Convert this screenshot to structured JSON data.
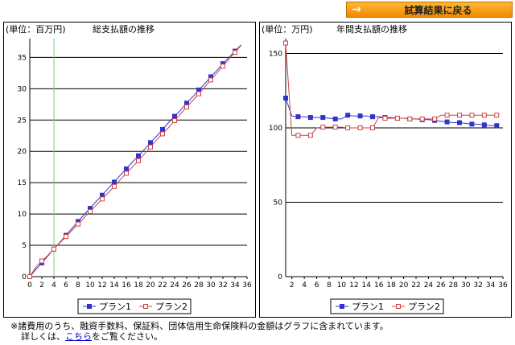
{
  "back_button": {
    "label": "試算結果に戻る",
    "icon": "arrow-right-icon"
  },
  "chart_data": [
    {
      "type": "line",
      "unit_label": "(単位：百万円)",
      "title": "総支払額の推移",
      "xlim": [
        0,
        36
      ],
      "ylim": [
        0,
        38
      ],
      "x_ticks": [
        0,
        2,
        4,
        6,
        8,
        10,
        12,
        14,
        16,
        18,
        20,
        22,
        24,
        26,
        28,
        30,
        32,
        34,
        36
      ],
      "y_ticks": [
        0,
        5,
        10,
        15,
        20,
        25,
        30,
        35
      ],
      "gridlines": [
        5,
        10,
        15,
        20,
        25,
        30,
        35
      ],
      "vline_x": 4,
      "legend_position": "bottom",
      "series": [
        {
          "name": "プラン1",
          "color": "#3333cc",
          "marker": "filled-square",
          "marker_every": 2,
          "x": [
            0,
            1,
            2,
            3,
            4,
            5,
            6,
            7,
            8,
            9,
            10,
            11,
            12,
            13,
            14,
            15,
            16,
            17,
            18,
            19,
            20,
            21,
            22,
            23,
            24,
            25,
            26,
            27,
            28,
            29,
            30,
            31,
            32,
            33,
            34,
            35
          ],
          "y": [
            0,
            1.15,
            2.2,
            3.3,
            4.4,
            5.5,
            6.6,
            7.7,
            8.8,
            9.9,
            10.9,
            12.0,
            13.0,
            14.1,
            15.1,
            16.2,
            17.2,
            18.3,
            19.3,
            20.3,
            21.4,
            22.4,
            23.5,
            24.6,
            25.6,
            26.6,
            27.7,
            28.7,
            29.8,
            30.8,
            31.9,
            32.9,
            34.0,
            35.0,
            36.0,
            37.0
          ]
        },
        {
          "name": "プラン2",
          "color": "#cc4444",
          "marker": "open-square",
          "marker_every": 2,
          "x": [
            0,
            1,
            2,
            3,
            4,
            5,
            6,
            7,
            8,
            9,
            10,
            11,
            12,
            13,
            14,
            15,
            16,
            17,
            18,
            19,
            20,
            21,
            22,
            23,
            24,
            25,
            26,
            27,
            28,
            29,
            30,
            31,
            32,
            33,
            34,
            35
          ],
          "y": [
            0,
            1.5,
            2.5,
            3.4,
            4.4,
            5.4,
            6.4,
            7.4,
            8.4,
            9.4,
            10.4,
            11.4,
            12.4,
            13.4,
            14.4,
            15.5,
            16.5,
            17.5,
            18.5,
            19.6,
            20.7,
            21.8,
            22.8,
            23.8,
            24.9,
            26.0,
            27.1,
            28.1,
            29.2,
            30.3,
            31.4,
            32.5,
            33.6,
            34.7,
            35.8,
            36.9
          ]
        }
      ]
    },
    {
      "type": "line",
      "unit_label": "(単位：万円)",
      "title": "年間支払額の推移",
      "xlim": [
        1,
        36
      ],
      "ylim": [
        0,
        160
      ],
      "x_ticks": [
        2,
        4,
        6,
        8,
        10,
        12,
        14,
        16,
        18,
        20,
        22,
        24,
        26,
        28,
        30,
        32,
        34,
        36
      ],
      "y_ticks": [
        0,
        50,
        100,
        150
      ],
      "gridlines": [
        50,
        100,
        150
      ],
      "legend_position": "bottom",
      "series": [
        {
          "name": "プラン1",
          "color": "#3333cc",
          "marker": "filled-square",
          "marker_every": 2,
          "x": [
            1,
            2,
            3,
            4,
            5,
            6,
            7,
            8,
            9,
            10,
            11,
            12,
            13,
            14,
            15,
            16,
            17,
            18,
            19,
            20,
            21,
            22,
            23,
            24,
            25,
            26,
            27,
            28,
            29,
            30,
            31,
            32,
            33,
            34,
            35
          ],
          "y": [
            120,
            108,
            107.5,
            107.5,
            107,
            107,
            107,
            106.5,
            106,
            106,
            108.5,
            108,
            108,
            108,
            107.5,
            107.5,
            107,
            107,
            106.5,
            106.5,
            106,
            106,
            105.5,
            105.5,
            105,
            104.5,
            104,
            103.5,
            103.5,
            103,
            102.5,
            102.5,
            102,
            101.5,
            101.5
          ]
        },
        {
          "name": "プラン2",
          "color": "#cc4444",
          "marker": "open-square",
          "marker_every": 2,
          "x": [
            1,
            2,
            3,
            4,
            5,
            6,
            7,
            8,
            9,
            10,
            11,
            12,
            13,
            14,
            15,
            16,
            17,
            18,
            19,
            20,
            21,
            22,
            23,
            24,
            25,
            26,
            27,
            28,
            29,
            30,
            31,
            32,
            33,
            34,
            35
          ],
          "y": [
            157,
            95,
            95,
            95,
            95,
            100,
            100.5,
            100.5,
            100.5,
            100.5,
            100,
            100,
            100,
            100,
            100,
            107,
            106.5,
            106.5,
            106.5,
            106.5,
            106,
            106,
            106,
            106,
            106,
            108.5,
            108.5,
            108.5,
            108.5,
            108.5,
            108.5,
            108.5,
            108.5,
            108.5,
            108.5
          ]
        }
      ]
    }
  ],
  "footnote": {
    "line1": "※諸費用のうち、融資手数料、保証料、団体信用生命保険料の金額はグラフに含まれています。",
    "line2_prefix": "詳しくは、",
    "line2_link": "こちら",
    "line2_suffix": "をご覧ください。"
  }
}
